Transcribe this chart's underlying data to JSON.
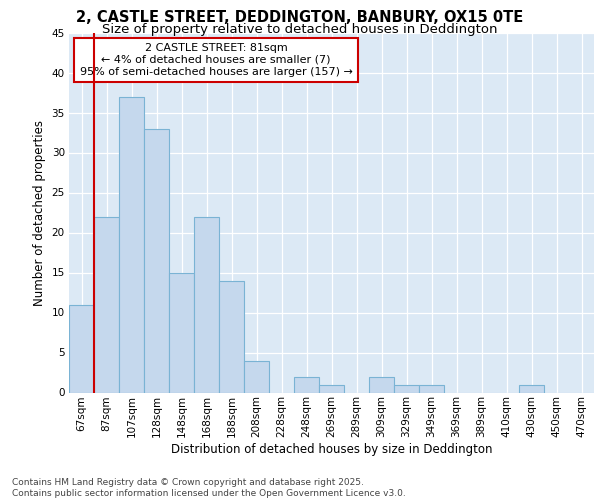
{
  "title_line1": "2, CASTLE STREET, DEDDINGTON, BANBURY, OX15 0TE",
  "title_line2": "Size of property relative to detached houses in Deddington",
  "xlabel": "Distribution of detached houses by size in Deddington",
  "ylabel": "Number of detached properties",
  "categories": [
    "67sqm",
    "87sqm",
    "107sqm",
    "128sqm",
    "148sqm",
    "168sqm",
    "188sqm",
    "208sqm",
    "228sqm",
    "248sqm",
    "269sqm",
    "289sqm",
    "309sqm",
    "329sqm",
    "349sqm",
    "369sqm",
    "389sqm",
    "410sqm",
    "430sqm",
    "450sqm",
    "470sqm"
  ],
  "values": [
    11,
    22,
    37,
    33,
    15,
    22,
    14,
    4,
    0,
    2,
    1,
    0,
    2,
    1,
    1,
    0,
    0,
    0,
    1,
    0,
    0
  ],
  "bar_color": "#c5d8ed",
  "bar_edge_color": "#7ab3d4",
  "highlight_color": "#cc0000",
  "annotation_text": "2 CASTLE STREET: 81sqm\n← 4% of detached houses are smaller (7)\n95% of semi-detached houses are larger (157) →",
  "ylim": [
    0,
    45
  ],
  "yticks": [
    0,
    5,
    10,
    15,
    20,
    25,
    30,
    35,
    40,
    45
  ],
  "plot_bg_color": "#dce9f5",
  "footer_line1": "Contains HM Land Registry data © Crown copyright and database right 2025.",
  "footer_line2": "Contains public sector information licensed under the Open Government Licence v3.0.",
  "title_fontsize": 10.5,
  "subtitle_fontsize": 9.5,
  "axis_label_fontsize": 8.5,
  "tick_fontsize": 7.5,
  "annotation_fontsize": 8,
  "footer_fontsize": 6.5
}
